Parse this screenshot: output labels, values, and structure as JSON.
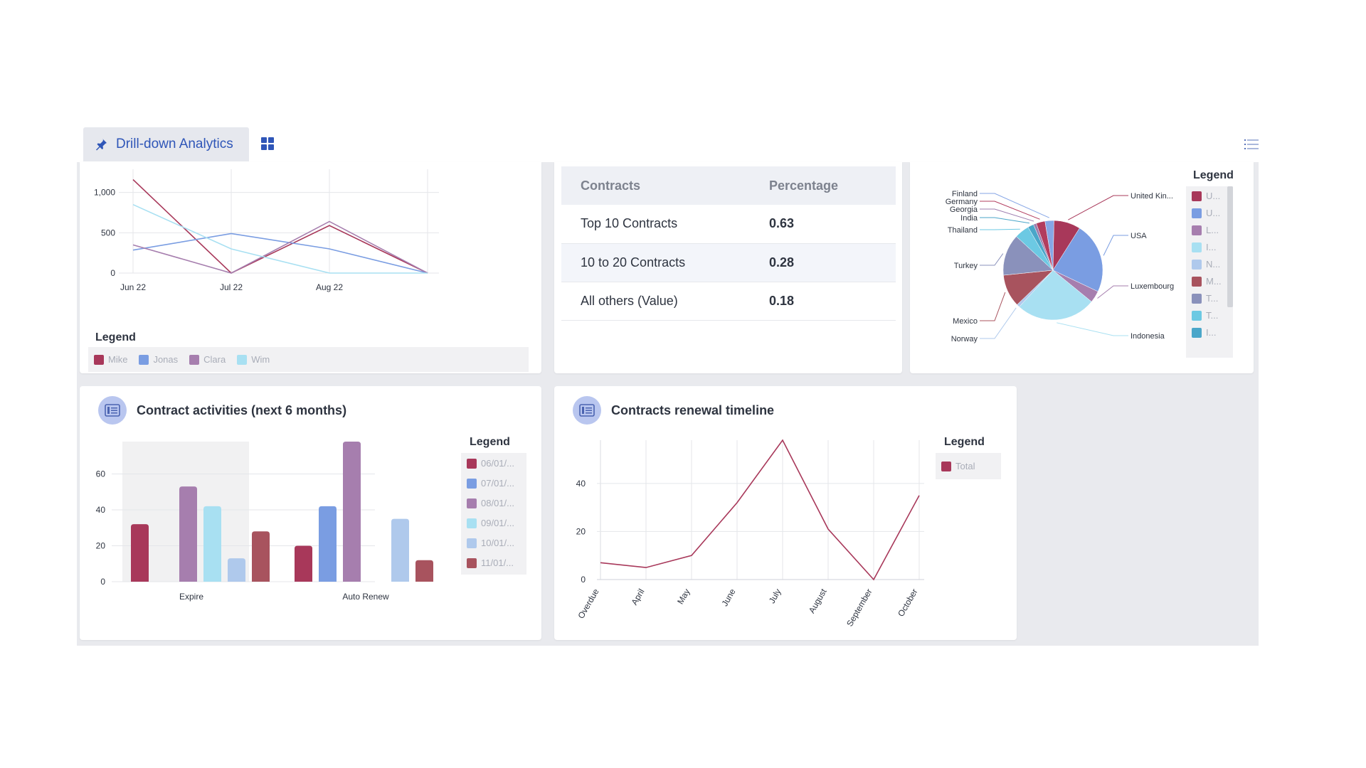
{
  "tabs": {
    "active_label": "Drill-down Analytics",
    "grid_icon": "grid-icon",
    "list_icon": "list-icon",
    "accent": "#2f56b8"
  },
  "line_card": {
    "legend_title": "Legend",
    "chart_data": {
      "type": "line",
      "categories": [
        "Jun 22",
        "Jul 22",
        "Aug 22",
        ""
      ],
      "yticks": [
        0,
        500,
        "1,000"
      ],
      "ylim": [
        0,
        1200
      ],
      "series": [
        {
          "name": "Mike",
          "color": "#a8385a",
          "values": [
            1160,
            0,
            590,
            0
          ]
        },
        {
          "name": "Jonas",
          "color": "#7a9de2",
          "values": [
            285,
            490,
            300,
            0
          ]
        },
        {
          "name": "Clara",
          "color": "#a67eae",
          "values": [
            350,
            0,
            640,
            0
          ]
        },
        {
          "name": "Wim",
          "color": "#a8e0f2",
          "values": [
            850,
            300,
            0,
            0
          ]
        }
      ]
    }
  },
  "contracts_table": {
    "headers": [
      "Contracts",
      "Percentage"
    ],
    "rows": [
      {
        "label": "Top 10 Contracts",
        "value": "0.63"
      },
      {
        "label": "10 to 20 Contracts",
        "value": "0.28"
      },
      {
        "label": "All others (Value)",
        "value": "0.18"
      }
    ]
  },
  "pie_card": {
    "legend_title": "Legend",
    "legend_items": [
      {
        "label": "U...",
        "color": "#a8385a"
      },
      {
        "label": "U...",
        "color": "#7a9de2"
      },
      {
        "label": "L...",
        "color": "#a67eae"
      },
      {
        "label": "I...",
        "color": "#a8e0f2"
      },
      {
        "label": "N...",
        "color": "#afc9ec"
      },
      {
        "label": "M...",
        "color": "#a8535e"
      },
      {
        "label": "T...",
        "color": "#8a91bb"
      },
      {
        "label": "T...",
        "color": "#6cc9e3"
      },
      {
        "label": "I...",
        "color": "#4aa6c9"
      }
    ],
    "chart_data": {
      "type": "pie",
      "slices": [
        {
          "name": "United Kin...",
          "value": 9,
          "color": "#a8385a"
        },
        {
          "name": "USA",
          "value": 24,
          "color": "#7a9de2"
        },
        {
          "name": "Luxembourg",
          "value": 4,
          "color": "#a67eae"
        },
        {
          "name": "Indonesia",
          "value": 27,
          "color": "#a8e0f2"
        },
        {
          "name": "Norway",
          "value": 1,
          "color": "#afc9ec"
        },
        {
          "name": "Mexico",
          "value": 11,
          "color": "#a8535e"
        },
        {
          "name": "Turkey",
          "value": 14,
          "color": "#8a91bb"
        },
        {
          "name": "Thailand",
          "value": 5,
          "color": "#6cc9e3"
        },
        {
          "name": "India",
          "value": 2,
          "color": "#4aa6c9"
        },
        {
          "name": "Georgia",
          "value": 1,
          "color": "#9c7cae"
        },
        {
          "name": "Germany",
          "value": 3,
          "color": "#b23c5e"
        },
        {
          "name": "Finland",
          "value": 3,
          "color": "#86a6e6"
        }
      ]
    }
  },
  "activities_card": {
    "title": "Contract activities (next 6 months)",
    "icon": "report-icon",
    "legend_title": "Legend",
    "chart_data": {
      "type": "bar",
      "categories": [
        "Expire",
        "Auto Renew"
      ],
      "yticks": [
        0,
        20,
        40,
        60
      ],
      "ylim": [
        0,
        78
      ],
      "series": [
        {
          "name": "06/01/...",
          "color": "#a8385a",
          "values": [
            32,
            20
          ]
        },
        {
          "name": "07/01/...",
          "color": "#7a9de2",
          "values": [
            null,
            42
          ]
        },
        {
          "name": "08/01/...",
          "color": "#a67eae",
          "values": [
            53,
            78
          ]
        },
        {
          "name": "09/01/...",
          "color": "#a8e0f2",
          "values": [
            42,
            null
          ]
        },
        {
          "name": "10/01/...",
          "color": "#afc9ec",
          "values": [
            13,
            35
          ]
        },
        {
          "name": "11/01/...",
          "color": "#a8535e",
          "values": [
            28,
            12
          ]
        }
      ]
    }
  },
  "renewal_card": {
    "title": "Contracts renewal timeline",
    "icon": "report-icon",
    "legend_title": "Legend",
    "chart_data": {
      "type": "line",
      "categories": [
        "Overdue",
        "April",
        "May",
        "June",
        "July",
        "August",
        "September",
        "October"
      ],
      "yticks": [
        0,
        20,
        40
      ],
      "ylim": [
        0,
        58
      ],
      "series": [
        {
          "name": "Total",
          "color": "#a8385a",
          "values": [
            7,
            5,
            10,
            32,
            58,
            21,
            0,
            35
          ]
        }
      ]
    }
  }
}
